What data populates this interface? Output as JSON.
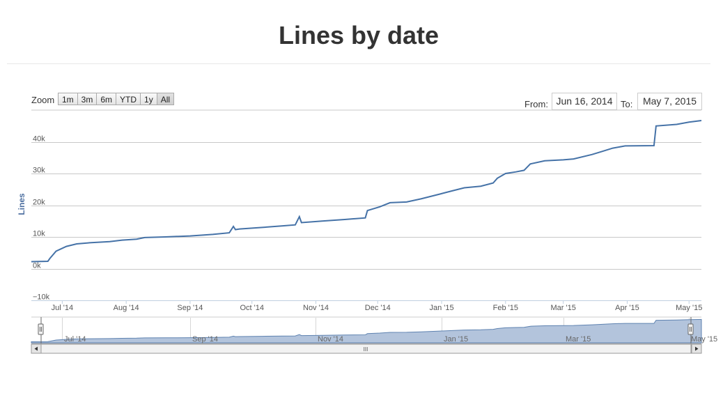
{
  "title": "Lines by date",
  "zoom": {
    "label": "Zoom",
    "buttons": [
      "1m",
      "3m",
      "6m",
      "YTD",
      "1y",
      "All"
    ],
    "selected": "All"
  },
  "range": {
    "from_label": "From:",
    "from_value": "Jun 16, 2014",
    "to_label": "To:",
    "to_value": "May 7, 2015"
  },
  "navigator": {
    "ticks": [
      "Jul '14",
      "Sep '14",
      "Nov '14",
      "Jan '15",
      "Mar '15",
      "May '15"
    ],
    "scrollbar_grip": "III"
  },
  "chart_data": {
    "type": "line",
    "title": "Lines by date",
    "xlabel": "",
    "ylabel": "Lines",
    "xlim": [
      "2014-06-16",
      "2015-05-07"
    ],
    "ylim": [
      -10000,
      50000
    ],
    "y_ticks": [
      -10000,
      0,
      10000,
      20000,
      30000,
      40000
    ],
    "y_tick_labels": [
      "−10k",
      "0k",
      "10k",
      "20k",
      "30k",
      "40k"
    ],
    "x_tick_dates": [
      "2014-07-01",
      "2014-08-01",
      "2014-09-01",
      "2014-10-01",
      "2014-11-01",
      "2014-12-01",
      "2015-01-01",
      "2015-02-01",
      "2015-03-01",
      "2015-04-01",
      "2015-05-01"
    ],
    "x_tick_labels": [
      "Jul '14",
      "Aug '14",
      "Sep '14",
      "Oct '14",
      "Nov '14",
      "Dec '14",
      "Jan '15",
      "Feb '15",
      "Mar '15",
      "Apr '15",
      "May '15"
    ],
    "grid": true,
    "color": "#4572a7",
    "series": [
      {
        "name": "",
        "points": [
          [
            "2014-06-16",
            2200
          ],
          [
            "2014-06-24",
            2300
          ],
          [
            "2014-06-25",
            3200
          ],
          [
            "2014-06-28",
            5500
          ],
          [
            "2014-07-03",
            7000
          ],
          [
            "2014-07-08",
            7800
          ],
          [
            "2014-07-15",
            8200
          ],
          [
            "2014-07-24",
            8500
          ],
          [
            "2014-07-30",
            9000
          ],
          [
            "2014-08-06",
            9300
          ],
          [
            "2014-08-10",
            9800
          ],
          [
            "2014-08-20",
            10000
          ],
          [
            "2014-09-01",
            10300
          ],
          [
            "2014-09-12",
            10800
          ],
          [
            "2014-09-20",
            11300
          ],
          [
            "2014-09-22",
            13300
          ],
          [
            "2014-09-23",
            12300
          ],
          [
            "2014-09-25",
            12500
          ],
          [
            "2014-10-06",
            13000
          ],
          [
            "2014-10-16",
            13500
          ],
          [
            "2014-10-22",
            13800
          ],
          [
            "2014-10-24",
            16400
          ],
          [
            "2014-10-25",
            14500
          ],
          [
            "2014-11-04",
            15000
          ],
          [
            "2014-11-15",
            15500
          ],
          [
            "2014-11-25",
            16000
          ],
          [
            "2014-11-26",
            18300
          ],
          [
            "2014-12-02",
            19500
          ],
          [
            "2014-12-07",
            20800
          ],
          [
            "2014-12-15",
            21000
          ],
          [
            "2014-12-22",
            22000
          ],
          [
            "2014-12-31",
            23500
          ],
          [
            "2015-01-06",
            24500
          ],
          [
            "2015-01-12",
            25500
          ],
          [
            "2015-01-20",
            26000
          ],
          [
            "2015-01-26",
            27000
          ],
          [
            "2015-01-28",
            28500
          ],
          [
            "2015-02-01",
            30000
          ],
          [
            "2015-02-06",
            30500
          ],
          [
            "2015-02-10",
            31000
          ],
          [
            "2015-02-13",
            33000
          ],
          [
            "2015-02-20",
            34000
          ],
          [
            "2015-03-01",
            34300
          ],
          [
            "2015-03-06",
            34600
          ],
          [
            "2015-03-15",
            36000
          ],
          [
            "2015-03-20",
            37000
          ],
          [
            "2015-03-25",
            38000
          ],
          [
            "2015-03-31",
            38700
          ],
          [
            "2015-04-14",
            38800
          ],
          [
            "2015-04-15",
            45000
          ],
          [
            "2015-04-25",
            45500
          ],
          [
            "2015-05-01",
            46200
          ],
          [
            "2015-05-07",
            46700
          ]
        ]
      }
    ]
  }
}
